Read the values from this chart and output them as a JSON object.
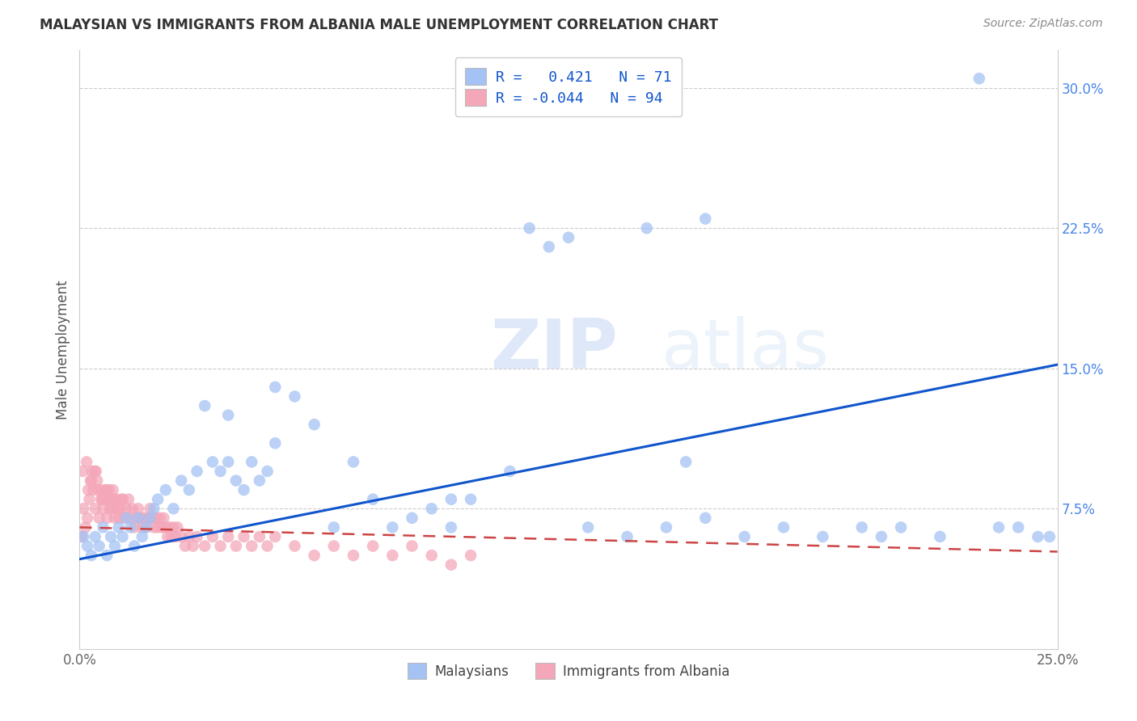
{
  "title": "MALAYSIAN VS IMMIGRANTS FROM ALBANIA MALE UNEMPLOYMENT CORRELATION CHART",
  "source": "Source: ZipAtlas.com",
  "ylabel_label": "Male Unemployment",
  "legend_entry1": "R =   0.421   N = 71",
  "legend_entry2": "R = -0.044   N = 94",
  "legend_label1": "Malaysians",
  "legend_label2": "Immigrants from Albania",
  "blue_color": "#a4c2f4",
  "pink_color": "#f4a7b9",
  "blue_line_color": "#1155cc",
  "pink_line_color": "#cc4444",
  "watermark_zip": "ZIP",
  "watermark_atlas": "atlas",
  "xmin": 0.0,
  "xmax": 0.25,
  "ymin": 0.0,
  "ymax": 0.32,
  "yticks": [
    0.075,
    0.15,
    0.225,
    0.3
  ],
  "ytick_labels": [
    "7.5%",
    "15.0%",
    "22.5%",
    "30.0%"
  ],
  "xticks": [
    0.0,
    0.25
  ],
  "xtick_labels": [
    "0.0%",
    "25.0%"
  ],
  "blue_line_x": [
    0.0,
    0.25
  ],
  "blue_line_y": [
    0.048,
    0.152
  ],
  "pink_line_x": [
    0.0,
    0.25
  ],
  "pink_line_y": [
    0.065,
    0.052
  ],
  "blue_scatter_x": [
    0.001,
    0.002,
    0.003,
    0.004,
    0.005,
    0.006,
    0.007,
    0.008,
    0.009,
    0.01,
    0.011,
    0.012,
    0.013,
    0.014,
    0.015,
    0.016,
    0.017,
    0.018,
    0.019,
    0.02,
    0.022,
    0.024,
    0.026,
    0.028,
    0.03,
    0.032,
    0.034,
    0.036,
    0.038,
    0.04,
    0.042,
    0.044,
    0.046,
    0.048,
    0.05,
    0.055,
    0.06,
    0.065,
    0.07,
    0.075,
    0.08,
    0.085,
    0.09,
    0.095,
    0.1,
    0.11,
    0.115,
    0.12,
    0.13,
    0.14,
    0.145,
    0.15,
    0.155,
    0.16,
    0.17,
    0.18,
    0.19,
    0.2,
    0.205,
    0.21,
    0.22,
    0.23,
    0.235,
    0.24,
    0.245,
    0.248,
    0.05,
    0.038,
    0.095,
    0.16,
    0.125
  ],
  "blue_scatter_y": [
    0.06,
    0.055,
    0.05,
    0.06,
    0.055,
    0.065,
    0.05,
    0.06,
    0.055,
    0.065,
    0.06,
    0.07,
    0.065,
    0.055,
    0.07,
    0.06,
    0.065,
    0.07,
    0.075,
    0.08,
    0.085,
    0.075,
    0.09,
    0.085,
    0.095,
    0.13,
    0.1,
    0.095,
    0.1,
    0.09,
    0.085,
    0.1,
    0.09,
    0.095,
    0.11,
    0.135,
    0.12,
    0.065,
    0.1,
    0.08,
    0.065,
    0.07,
    0.075,
    0.065,
    0.08,
    0.095,
    0.225,
    0.215,
    0.065,
    0.06,
    0.225,
    0.065,
    0.1,
    0.23,
    0.06,
    0.065,
    0.06,
    0.065,
    0.06,
    0.065,
    0.06,
    0.305,
    0.065,
    0.065,
    0.06,
    0.06,
    0.14,
    0.125,
    0.08,
    0.07,
    0.22
  ],
  "pink_scatter_x": [
    0.0005,
    0.001,
    0.0015,
    0.002,
    0.0022,
    0.0025,
    0.003,
    0.0032,
    0.0035,
    0.004,
    0.0042,
    0.0045,
    0.005,
    0.0052,
    0.0055,
    0.006,
    0.0062,
    0.0065,
    0.007,
    0.0072,
    0.0075,
    0.008,
    0.0082,
    0.0085,
    0.009,
    0.0092,
    0.0095,
    0.01,
    0.0105,
    0.011,
    0.0115,
    0.012,
    0.0125,
    0.013,
    0.0135,
    0.014,
    0.0145,
    0.015,
    0.0155,
    0.016,
    0.0165,
    0.017,
    0.0175,
    0.018,
    0.0185,
    0.019,
    0.0195,
    0.02,
    0.0205,
    0.021,
    0.0215,
    0.022,
    0.0225,
    0.023,
    0.0235,
    0.024,
    0.0245,
    0.025,
    0.026,
    0.027,
    0.028,
    0.029,
    0.03,
    0.032,
    0.034,
    0.036,
    0.038,
    0.04,
    0.042,
    0.044,
    0.046,
    0.048,
    0.05,
    0.055,
    0.06,
    0.065,
    0.07,
    0.075,
    0.08,
    0.085,
    0.09,
    0.095,
    0.1,
    0.0008,
    0.0018,
    0.0028,
    0.0038,
    0.0048,
    0.0058,
    0.0068,
    0.0078,
    0.0088,
    0.0098,
    0.0108
  ],
  "pink_scatter_y": [
    0.06,
    0.075,
    0.065,
    0.07,
    0.085,
    0.08,
    0.09,
    0.095,
    0.085,
    0.075,
    0.095,
    0.09,
    0.07,
    0.085,
    0.08,
    0.075,
    0.08,
    0.085,
    0.07,
    0.08,
    0.085,
    0.075,
    0.08,
    0.085,
    0.07,
    0.075,
    0.08,
    0.07,
    0.075,
    0.08,
    0.07,
    0.075,
    0.08,
    0.07,
    0.075,
    0.065,
    0.07,
    0.075,
    0.07,
    0.065,
    0.07,
    0.065,
    0.07,
    0.075,
    0.07,
    0.065,
    0.07,
    0.065,
    0.07,
    0.065,
    0.07,
    0.065,
    0.06,
    0.065,
    0.06,
    0.065,
    0.06,
    0.065,
    0.06,
    0.055,
    0.06,
    0.055,
    0.06,
    0.055,
    0.06,
    0.055,
    0.06,
    0.055,
    0.06,
    0.055,
    0.06,
    0.055,
    0.06,
    0.055,
    0.05,
    0.055,
    0.05,
    0.055,
    0.05,
    0.055,
    0.05,
    0.045,
    0.05,
    0.095,
    0.1,
    0.09,
    0.095,
    0.085,
    0.08,
    0.085,
    0.075,
    0.08,
    0.075,
    0.08
  ]
}
